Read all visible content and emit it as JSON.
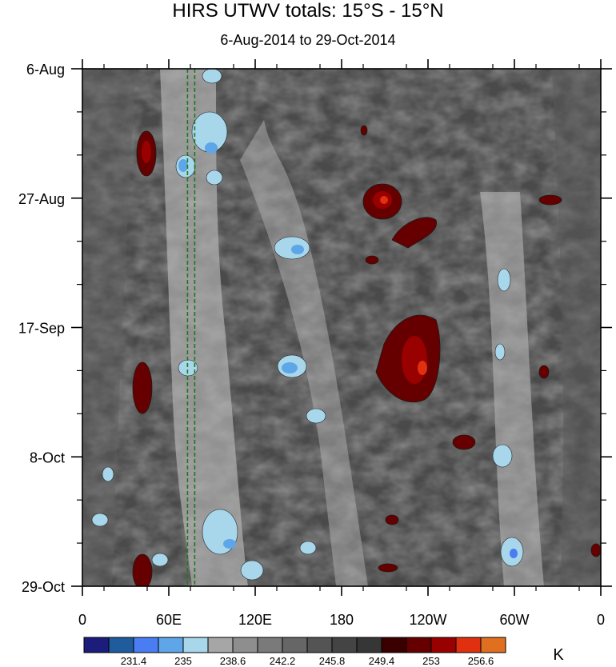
{
  "chart_data": {
    "type": "heatmap",
    "title": "HIRS UTWV totals: 15°S - 15°N",
    "subtitle": "6-Aug-2014 to 29-Oct-2014",
    "xlabel": "",
    "ylabel": "",
    "x_ticks": [
      "0",
      "60E",
      "120E",
      "180",
      "120W",
      "60W",
      "0"
    ],
    "y_ticks": [
      "6-Aug",
      "27-Aug",
      "17-Sep",
      "8-Oct",
      "29-Oct"
    ],
    "xlim": [
      0,
      360
    ],
    "ylim": [
      "6-Aug-2014",
      "29-Oct-2014"
    ],
    "colorbar": {
      "unit": "K",
      "labels": [
        "231.4",
        "235",
        "238.6",
        "242.2",
        "245.8",
        "249.4",
        "253",
        "256.6"
      ],
      "colors": [
        "#1c1c7a",
        "#1f5c9e",
        "#4a7cf2",
        "#5ea6e8",
        "#a8d6ea",
        "#a6a6a6",
        "#8e8e8e",
        "#7a7a7a",
        "#666666",
        "#545454",
        "#444444",
        "#363636",
        "#3a0000",
        "#660000",
        "#990000",
        "#e03010",
        "#e07020"
      ]
    },
    "features": [
      {
        "lon": 73,
        "lat_line": "dashed",
        "color": "#1a7a1a"
      },
      {
        "lon": 78,
        "lat_line": "dashed",
        "color": "#1a7a1a"
      }
    ]
  }
}
